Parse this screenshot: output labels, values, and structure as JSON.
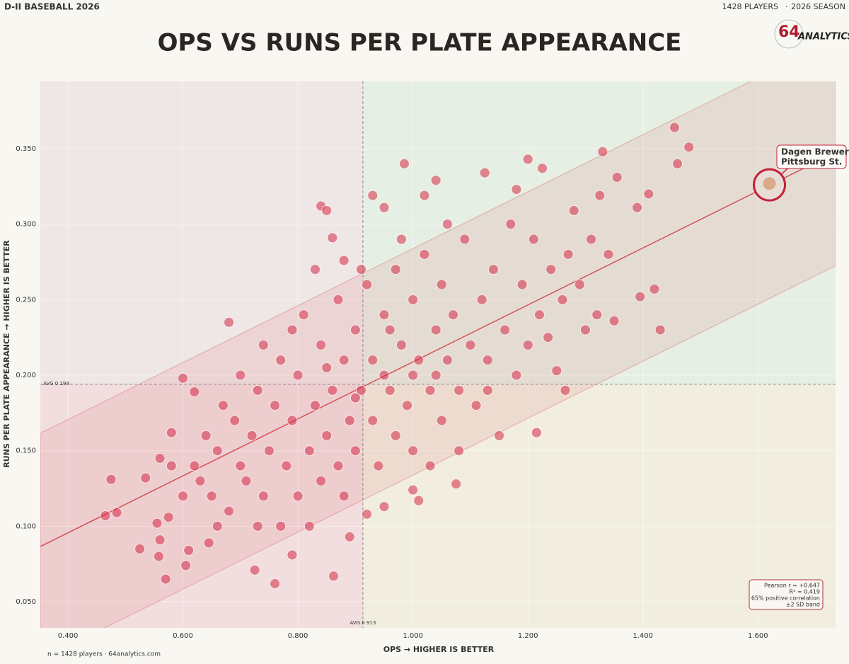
{
  "header": {
    "league": "D-II BASEBALL 2026",
    "players": "1428 PLAYERS",
    "season": "2026 SEASON",
    "logo_number": "64",
    "logo_text": "ANALYTICS"
  },
  "footer": "n = 1428 players  ·  64analytics.com",
  "chart_data": {
    "type": "scatter",
    "title": "OPS VS RUNS PER PLATE APPEARANCE",
    "x_label": "OPS  →  HIGHER IS BETTER",
    "y_label": "RUNS PER PLATE APPEARANCE  →  HIGHER IS BETTER",
    "xlim": [
      0.352,
      1.735
    ],
    "ylim": [
      0.0327,
      0.3945
    ],
    "xticks": [
      {
        "value": 0.4,
        "label": "0.400"
      },
      {
        "value": 0.6,
        "label": "0.600"
      },
      {
        "value": 0.8,
        "label": "0.800"
      },
      {
        "value": 1.0,
        "label": "1.000"
      },
      {
        "value": 1.2,
        "label": "1.200"
      },
      {
        "value": 1.4,
        "label": "1.400"
      },
      {
        "value": 1.6,
        "label": "1.600"
      }
    ],
    "yticks": [
      {
        "value": 0.05,
        "label": "0.050"
      },
      {
        "value": 0.1,
        "label": "0.100"
      },
      {
        "value": 0.15,
        "label": "0.150"
      },
      {
        "value": 0.2,
        "label": "0.200"
      },
      {
        "value": 0.25,
        "label": "0.250"
      },
      {
        "value": 0.3,
        "label": "0.300"
      },
      {
        "value": 0.35,
        "label": "0.350"
      }
    ],
    "grid": true,
    "avg_x": {
      "value": 0.913,
      "label": "AVG 0.913"
    },
    "avg_y": {
      "value": 0.194,
      "label": "AVG 0.194"
    },
    "regression": {
      "slope": 0.1886,
      "intercept": 0.0202,
      "band": 0.075
    },
    "stats": [
      "Pearson r = +0.647",
      "R² = 0.419",
      "65% positive correlation",
      "±2 SD band"
    ],
    "highlight": {
      "name": "Dagen Brewer",
      "team": "Pittsburg St.",
      "x": 1.62,
      "y": 0.326
    },
    "series": [
      {
        "name": "Players",
        "color": "#d42a46",
        "x": [
          0.465,
          0.475,
          0.485,
          0.525,
          0.535,
          0.555,
          0.558,
          0.56,
          0.57,
          0.575,
          0.58,
          0.6,
          0.605,
          0.61,
          0.62,
          0.645,
          0.68,
          0.725,
          0.76,
          0.79,
          0.82,
          0.84,
          0.85,
          0.862,
          0.86,
          0.88,
          0.89,
          0.92,
          0.93,
          0.95,
          0.95,
          0.985,
          1.0,
          1.01,
          1.02,
          1.04,
          1.075,
          1.125,
          1.18,
          1.2,
          1.215,
          1.225,
          1.28,
          1.325,
          1.33,
          1.34,
          1.355,
          1.39,
          1.395,
          1.41,
          1.42,
          1.43,
          1.455,
          1.46,
          1.48,
          1.35,
          1.3,
          1.265,
          1.25,
          1.235,
          0.62,
          0.63,
          0.64,
          0.65,
          0.66,
          0.67,
          0.68,
          0.69,
          0.7,
          0.7,
          0.71,
          0.72,
          0.73,
          0.74,
          0.74,
          0.75,
          0.76,
          0.77,
          0.77,
          0.78,
          0.79,
          0.8,
          0.8,
          0.81,
          0.82,
          0.83,
          0.84,
          0.84,
          0.85,
          0.86,
          0.87,
          0.87,
          0.88,
          0.89,
          0.9,
          0.9,
          0.91,
          0.92,
          0.93,
          0.93,
          0.94,
          0.95,
          0.96,
          0.97,
          0.97,
          0.98,
          0.99,
          1.0,
          1.0,
          1.01,
          1.02,
          1.03,
          1.04,
          1.05,
          1.05,
          1.06,
          1.07,
          1.08,
          1.09,
          1.1,
          1.11,
          1.12,
          1.13,
          1.14,
          1.15,
          1.16,
          1.17,
          1.18,
          1.19,
          1.2,
          1.21,
          1.22,
          1.24,
          1.26,
          1.27,
          1.29,
          1.31,
          1.32,
          0.58,
          0.6,
          0.56,
          0.66,
          0.73,
          0.79,
          0.83,
          0.88,
          0.95,
          1.03,
          1.08,
          1.13,
          1.06,
          0.98,
          0.91,
          1.0,
          0.96,
          1.04,
          0.85,
          0.9
        ],
        "values": [
          0.107,
          0.131,
          0.109,
          0.085,
          0.132,
          0.102,
          0.08,
          0.091,
          0.065,
          0.106,
          0.162,
          0.198,
          0.074,
          0.084,
          0.189,
          0.089,
          0.235,
          0.071,
          0.062,
          0.081,
          0.1,
          0.312,
          0.309,
          0.067,
          0.291,
          0.276,
          0.093,
          0.108,
          0.319,
          0.311,
          0.113,
          0.34,
          0.124,
          0.117,
          0.319,
          0.329,
          0.128,
          0.334,
          0.323,
          0.343,
          0.162,
          0.337,
          0.309,
          0.319,
          0.348,
          0.28,
          0.331,
          0.311,
          0.252,
          0.32,
          0.257,
          0.23,
          0.364,
          0.34,
          0.351,
          0.236,
          0.23,
          0.19,
          0.203,
          0.225,
          0.14,
          0.13,
          0.16,
          0.12,
          0.15,
          0.18,
          0.11,
          0.17,
          0.14,
          0.2,
          0.13,
          0.16,
          0.19,
          0.12,
          0.22,
          0.15,
          0.18,
          0.1,
          0.21,
          0.14,
          0.17,
          0.12,
          0.2,
          0.24,
          0.15,
          0.18,
          0.13,
          0.22,
          0.16,
          0.19,
          0.25,
          0.14,
          0.21,
          0.17,
          0.23,
          0.15,
          0.19,
          0.26,
          0.17,
          0.21,
          0.14,
          0.24,
          0.19,
          0.16,
          0.27,
          0.22,
          0.18,
          0.25,
          0.15,
          0.21,
          0.28,
          0.19,
          0.23,
          0.17,
          0.26,
          0.21,
          0.24,
          0.19,
          0.29,
          0.22,
          0.18,
          0.25,
          0.21,
          0.27,
          0.16,
          0.23,
          0.3,
          0.2,
          0.26,
          0.22,
          0.29,
          0.24,
          0.27,
          0.25,
          0.28,
          0.26,
          0.29,
          0.24,
          0.14,
          0.12,
          0.145,
          0.1,
          0.1,
          0.23,
          0.27,
          0.12,
          0.2,
          0.14,
          0.15,
          0.19,
          0.3,
          0.29,
          0.27,
          0.2,
          0.23,
          0.2,
          0.205,
          0.185
        ]
      }
    ]
  }
}
